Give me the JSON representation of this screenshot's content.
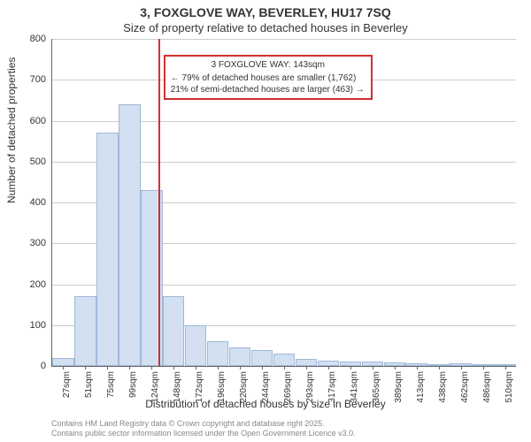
{
  "title": "3, FOXGLOVE WAY, BEVERLEY, HU17 7SQ",
  "subtitle": "Size of property relative to detached houses in Beverley",
  "ylabel": "Number of detached properties",
  "xlabel": "Distribution of detached houses by size in Beverley",
  "footer_line1": "Contains HM Land Registry data © Crown copyright and database right 2025.",
  "footer_line2": "Contains public sector information licensed under the Open Government Licence v3.0.",
  "chart": {
    "type": "histogram",
    "background_color": "#ffffff",
    "grid_color": "#cccccc",
    "axis_color": "#666666",
    "bar_fill": "#d2e0f2",
    "bar_stroke": "#9fb8d9",
    "marker_color": "#d03030",
    "ylim": [
      0,
      800
    ],
    "ytick_step": 100,
    "yticks": [
      0,
      100,
      200,
      300,
      400,
      500,
      600,
      700,
      800
    ],
    "xticks": [
      "27sqm",
      "51sqm",
      "75sqm",
      "99sqm",
      "124sqm",
      "148sqm",
      "172sqm",
      "196sqm",
      "220sqm",
      "244sqm",
      "269sqm",
      "293sqm",
      "317sqm",
      "341sqm",
      "365sqm",
      "389sqm",
      "413sqm",
      "438sqm",
      "462sqm",
      "486sqm",
      "510sqm"
    ],
    "bars": [
      20,
      170,
      570,
      640,
      430,
      170,
      100,
      60,
      45,
      40,
      30,
      18,
      12,
      10,
      10,
      8,
      6,
      0,
      6,
      5,
      5
    ],
    "marker_at_bin_index": 5,
    "marker_value_sqm": 143,
    "callout": {
      "header": "3 FOXGLOVE WAY: 143sqm",
      "line1": "← 79% of detached houses are smaller (1,762)",
      "line2": "21% of semi-detached houses are larger (463) →"
    },
    "title_fontsize": 14,
    "subtitle_fontsize": 13,
    "label_fontsize": 12,
    "tick_fontsize": 11,
    "xtick_fontsize": 10,
    "footer_fontsize": 9
  }
}
